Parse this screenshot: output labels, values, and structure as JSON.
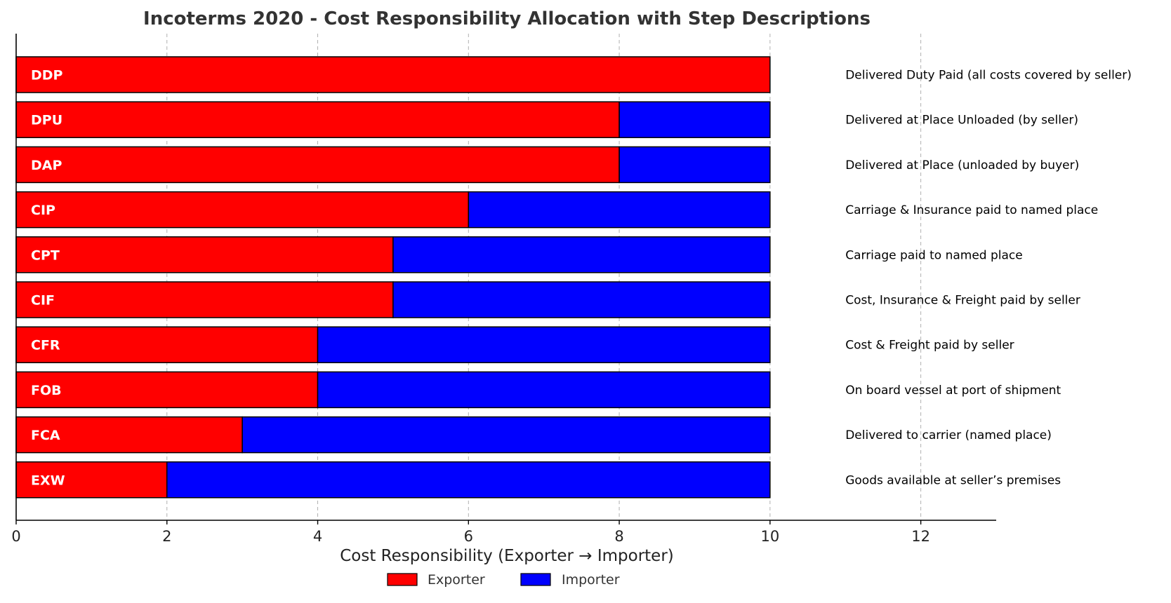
{
  "chart_data": {
    "type": "bar",
    "orientation": "horizontal",
    "stacked": true,
    "title": "Incoterms 2020 - Cost Responsibility Allocation with Step Descriptions",
    "xlabel": "Cost Responsibility (Exporter → Importer)",
    "ylabel": "",
    "xlim": [
      0,
      13
    ],
    "xticks": [
      0,
      2,
      4,
      6,
      8,
      10,
      12
    ],
    "grid": "vertical-dashed",
    "legend_position": "bottom-center",
    "categories": [
      "DDP",
      "DPU",
      "DAP",
      "CIP",
      "CPT",
      "CIF",
      "CFR",
      "FOB",
      "FCA",
      "EXW"
    ],
    "series": [
      {
        "name": "Exporter",
        "color": "#ff0000",
        "values": [
          10,
          8,
          8,
          6,
          5,
          5,
          4,
          4,
          3,
          2
        ]
      },
      {
        "name": "Importer",
        "color": "#0000ff",
        "values": [
          0,
          2,
          2,
          4,
          5,
          5,
          6,
          6,
          7,
          8
        ]
      }
    ],
    "descriptions": [
      "Delivered Duty Paid (all costs covered by seller)",
      "Delivered at Place Unloaded (by seller)",
      "Delivered at Place (unloaded by buyer)",
      "Carriage & Insurance paid to named place",
      "Carriage paid to named place",
      "Cost, Insurance & Freight paid by seller",
      "Cost & Freight paid by seller",
      "On board vessel at port of shipment",
      "Delivered to carrier (named place)",
      "Goods available at seller’s premises"
    ],
    "description_x": 11
  }
}
